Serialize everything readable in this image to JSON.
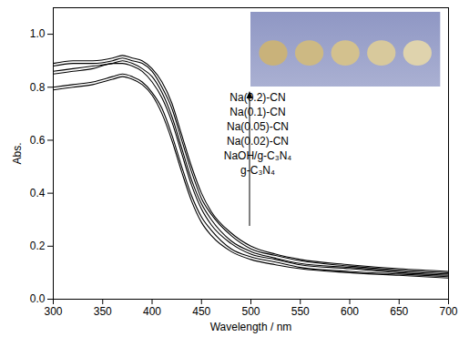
{
  "chart_data": {
    "type": "line",
    "x_label": "Wavelength / nm",
    "y_label": "Abs.",
    "xlim": [
      300,
      700
    ],
    "xticks": [
      300,
      350,
      400,
      450,
      500,
      550,
      600,
      650,
      700
    ],
    "ylim": [
      0,
      1.1
    ],
    "yticks": [
      {
        "value": 0,
        "label": "0.0"
      },
      {
        "value": 0.2,
        "label": "0.2"
      },
      {
        "value": 0.4,
        "label": "0.4"
      },
      {
        "value": 0.6,
        "label": "0.6"
      },
      {
        "value": 0.8,
        "label": "0.8"
      },
      {
        "value": 1.0,
        "label": "1.0"
      }
    ],
    "grid": false,
    "legend": "upper right",
    "x": [
      300,
      320,
      340,
      360,
      370,
      380,
      390,
      400,
      410,
      420,
      430,
      440,
      450,
      460,
      480,
      500,
      525,
      550,
      600,
      650,
      700
    ],
    "series": [
      {
        "name": "g-C₃N₄",
        "color": "#000000",
        "values": [
          0.79,
          0.8,
          0.81,
          0.83,
          0.84,
          0.83,
          0.81,
          0.77,
          0.7,
          0.6,
          0.48,
          0.37,
          0.29,
          0.24,
          0.18,
          0.15,
          0.13,
          0.115,
          0.1,
          0.09,
          0.08
        ]
      },
      {
        "name": "NaOH/g-C₃N₄",
        "color": "#000000",
        "values": [
          0.8,
          0.81,
          0.82,
          0.84,
          0.85,
          0.84,
          0.82,
          0.78,
          0.72,
          0.62,
          0.5,
          0.39,
          0.31,
          0.26,
          0.19,
          0.16,
          0.14,
          0.12,
          0.105,
          0.095,
          0.085
        ]
      },
      {
        "name": "Na(0.02)-CN",
        "color": "#000000",
        "values": [
          0.85,
          0.86,
          0.87,
          0.89,
          0.89,
          0.88,
          0.86,
          0.82,
          0.76,
          0.67,
          0.55,
          0.43,
          0.34,
          0.28,
          0.21,
          0.17,
          0.15,
          0.13,
          0.115,
          0.1,
          0.09
        ]
      },
      {
        "name": "Na(0.05)-CN",
        "color": "#000000",
        "values": [
          0.86,
          0.87,
          0.88,
          0.89,
          0.9,
          0.89,
          0.87,
          0.84,
          0.78,
          0.69,
          0.57,
          0.45,
          0.36,
          0.3,
          0.22,
          0.18,
          0.155,
          0.135,
          0.12,
          0.105,
          0.095
        ]
      },
      {
        "name": "Na(0.1)-CN",
        "color": "#000000",
        "values": [
          0.88,
          0.89,
          0.89,
          0.9,
          0.91,
          0.9,
          0.89,
          0.86,
          0.8,
          0.72,
          0.6,
          0.48,
          0.38,
          0.32,
          0.24,
          0.19,
          0.165,
          0.145,
          0.125,
          0.11,
          0.1
        ]
      },
      {
        "name": "Na(0.2)-CN",
        "color": "#000000",
        "values": [
          0.89,
          0.9,
          0.9,
          0.91,
          0.92,
          0.91,
          0.9,
          0.87,
          0.82,
          0.74,
          0.62,
          0.5,
          0.4,
          0.33,
          0.25,
          0.2,
          0.17,
          0.15,
          0.13,
          0.115,
          0.105
        ]
      }
    ]
  }
}
